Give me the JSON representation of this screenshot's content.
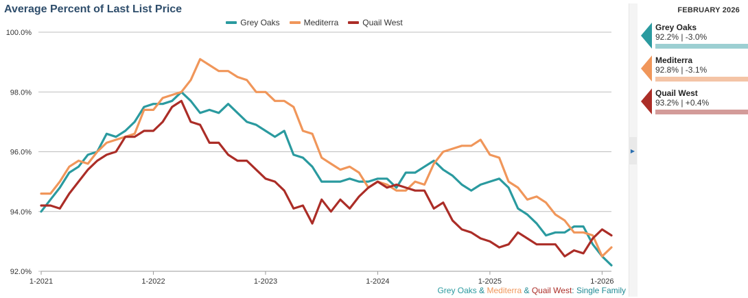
{
  "colors": {
    "grey_oaks": "#2a9a9f",
    "mediterra": "#f0965a",
    "quail_west": "#ab2d27",
    "grid": "#bdbdbd",
    "axis_text": "#333333"
  },
  "footnote": {
    "series_1": "Grey Oaks",
    "amp_1": " & ",
    "series_2": "Mediterra",
    "amp_2": " & ",
    "series_3": "Quail West",
    "suffix": ": Single Family"
  },
  "side_panel": {
    "month": "FEBRUARY 2026",
    "cards": [
      {
        "name": "Grey Oaks",
        "stats": "92.2% | -3.0%",
        "color": "#2a9a9f",
        "bar_color": "#9ccfd2"
      },
      {
        "name": "Mediterra",
        "stats": "92.8% | -3.1%",
        "color": "#f0965a",
        "bar_color": "#f4c4a6"
      },
      {
        "name": "Quail West",
        "stats": "93.2% | +0.4%",
        "color": "#ab2d27",
        "bar_color": "#d39b99"
      }
    ]
  },
  "chart_data": {
    "type": "line",
    "title": "Average Percent of Last List Price",
    "xlabel": "",
    "ylabel": "",
    "x_start": "1-2021",
    "x_end": "2-2026",
    "xticks": [
      "1-2021",
      "1-2022",
      "1-2023",
      "1-2024",
      "1-2025",
      "1-2026"
    ],
    "yticks": [
      "92.0%",
      "94.0%",
      "96.0%",
      "98.0%",
      "100.0%"
    ],
    "ylim": [
      92,
      100
    ],
    "grid": true,
    "legend_position": "top-center",
    "series": [
      {
        "name": "Grey Oaks",
        "color": "#2a9a9f",
        "values": [
          94.0,
          94.4,
          94.8,
          95.3,
          95.5,
          95.9,
          96.0,
          96.6,
          96.5,
          96.7,
          97.0,
          97.5,
          97.6,
          97.6,
          97.7,
          98.0,
          97.7,
          97.3,
          97.4,
          97.3,
          97.6,
          97.3,
          97.0,
          96.9,
          96.7,
          96.5,
          96.7,
          95.9,
          95.8,
          95.5,
          95.0,
          95.0,
          95.0,
          95.1,
          95.0,
          95.0,
          95.1,
          95.1,
          94.8,
          95.3,
          95.3,
          95.5,
          95.7,
          95.4,
          95.2,
          94.9,
          94.7,
          94.9,
          95.0,
          95.1,
          94.8,
          94.1,
          93.9,
          93.6,
          93.2,
          93.3,
          93.3,
          93.5,
          93.5,
          92.9,
          92.5,
          92.2
        ]
      },
      {
        "name": "Mediterra",
        "color": "#f0965a",
        "values": [
          94.6,
          94.6,
          95.0,
          95.5,
          95.7,
          95.6,
          96.0,
          96.3,
          96.4,
          96.5,
          96.6,
          97.4,
          97.4,
          97.8,
          97.9,
          98.0,
          98.4,
          99.1,
          98.9,
          98.7,
          98.7,
          98.5,
          98.4,
          98.0,
          98.0,
          97.7,
          97.7,
          97.5,
          96.7,
          96.6,
          95.8,
          95.6,
          95.4,
          95.5,
          95.3,
          94.8,
          95.0,
          94.9,
          94.7,
          94.7,
          95.0,
          94.9,
          95.6,
          96.0,
          96.1,
          96.2,
          96.2,
          96.4,
          95.9,
          95.8,
          95.0,
          94.8,
          94.4,
          94.5,
          94.3,
          93.9,
          93.7,
          93.3,
          93.3,
          93.2,
          92.5,
          92.8
        ]
      },
      {
        "name": "Quail West",
        "color": "#ab2d27",
        "values": [
          94.2,
          94.2,
          94.1,
          94.6,
          95.0,
          95.4,
          95.7,
          95.9,
          96.0,
          96.5,
          96.5,
          96.7,
          96.7,
          97.0,
          97.5,
          97.7,
          97.0,
          96.9,
          96.3,
          96.3,
          95.9,
          95.7,
          95.7,
          95.4,
          95.1,
          95.0,
          94.7,
          94.1,
          94.2,
          93.6,
          94.4,
          94.0,
          94.4,
          94.1,
          94.5,
          94.8,
          95.0,
          94.8,
          94.9,
          94.8,
          94.7,
          94.7,
          94.1,
          94.3,
          93.7,
          93.4,
          93.3,
          93.1,
          93.0,
          92.8,
          92.9,
          93.3,
          93.1,
          92.9,
          92.9,
          92.9,
          92.5,
          92.7,
          92.6,
          93.1,
          93.4,
          93.2
        ]
      }
    ]
  }
}
